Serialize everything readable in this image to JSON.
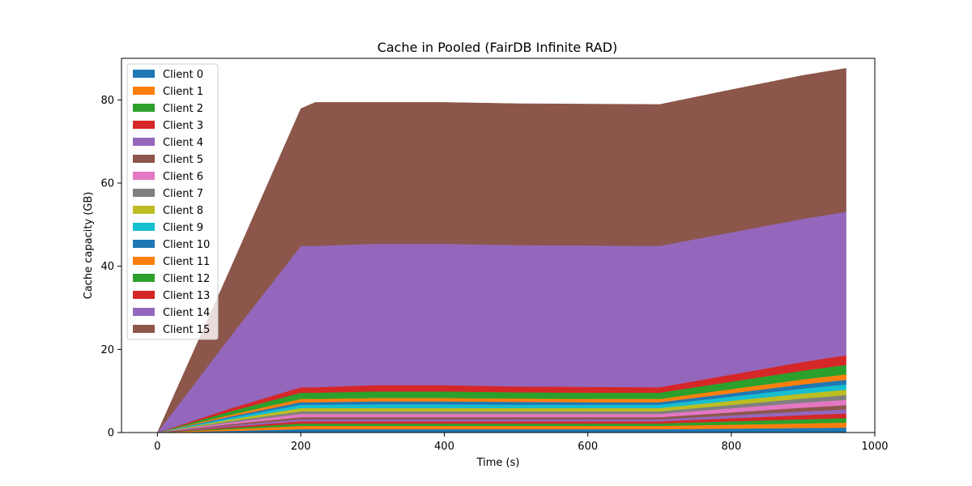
{
  "chart_data": {
    "type": "area",
    "stacked": true,
    "title": "Cache in  Pooled (FairDB Infinite RAD)",
    "xlabel": "Time (s)",
    "ylabel": "Cache capacity (GB)",
    "xlim": [
      -50,
      1000
    ],
    "ylim": [
      0,
      90
    ],
    "xticks": [
      0,
      200,
      400,
      600,
      800,
      1000
    ],
    "yticks": [
      0,
      20,
      40,
      60,
      80
    ],
    "grid": false,
    "legend_position": "upper-left",
    "x": [
      0,
      100,
      200,
      220,
      300,
      400,
      500,
      600,
      700,
      800,
      900,
      960
    ],
    "series": [
      {
        "name": "Client 0",
        "color": "#1f77b4",
        "values": [
          0,
          0.4,
          0.8,
          0.8,
          0.8,
          0.8,
          0.8,
          0.8,
          0.8,
          0.95,
          1.1,
          1.2
        ]
      },
      {
        "name": "Client 1",
        "color": "#ff7f0e",
        "values": [
          0,
          0.4,
          0.8,
          0.8,
          0.8,
          0.8,
          0.8,
          0.8,
          0.8,
          0.95,
          1.1,
          1.2
        ]
      },
      {
        "name": "Client 2",
        "color": "#2ca02c",
        "values": [
          0,
          0.3,
          0.6,
          0.6,
          0.6,
          0.6,
          0.6,
          0.6,
          0.6,
          0.8,
          1.0,
          1.1
        ]
      },
      {
        "name": "Client 3",
        "color": "#d62728",
        "values": [
          0,
          0.3,
          0.5,
          0.5,
          0.5,
          0.5,
          0.5,
          0.5,
          0.5,
          0.75,
          1.0,
          1.1
        ]
      },
      {
        "name": "Client 4",
        "color": "#9467bd",
        "values": [
          0,
          0.3,
          0.5,
          0.5,
          0.5,
          0.5,
          0.5,
          0.5,
          0.5,
          0.7,
          0.9,
          1.0
        ]
      },
      {
        "name": "Client 5",
        "color": "#8c564b",
        "values": [
          0,
          0.3,
          0.5,
          0.5,
          0.5,
          0.5,
          0.5,
          0.5,
          0.5,
          0.7,
          0.9,
          1.0
        ]
      },
      {
        "name": "Client 6",
        "color": "#e377c2",
        "values": [
          0,
          0.4,
          0.8,
          0.8,
          0.8,
          0.8,
          0.8,
          0.8,
          0.8,
          1.0,
          1.2,
          1.3
        ]
      },
      {
        "name": "Client 7",
        "color": "#7f7f7f",
        "values": [
          0,
          0.3,
          0.6,
          0.6,
          0.6,
          0.6,
          0.6,
          0.6,
          0.6,
          0.8,
          1.0,
          1.1
        ]
      },
      {
        "name": "Client 8",
        "color": "#bcbd22",
        "values": [
          0,
          0.4,
          0.8,
          0.8,
          0.8,
          0.8,
          0.8,
          0.8,
          0.8,
          1.0,
          1.2,
          1.3
        ]
      },
      {
        "name": "Client 9",
        "color": "#17becf",
        "values": [
          0,
          0.4,
          0.8,
          0.8,
          0.9,
          0.9,
          0.8,
          0.8,
          0.8,
          1.0,
          1.2,
          1.3
        ]
      },
      {
        "name": "Client 10",
        "color": "#1f77b4",
        "values": [
          0,
          0.3,
          0.6,
          0.6,
          0.7,
          0.7,
          0.7,
          0.6,
          0.6,
          0.8,
          1.0,
          1.1
        ]
      },
      {
        "name": "Client 11",
        "color": "#ff7f0e",
        "values": [
          0,
          0.4,
          0.8,
          0.8,
          0.8,
          0.8,
          0.8,
          0.8,
          0.8,
          1.0,
          1.2,
          1.3
        ]
      },
      {
        "name": "Client 12",
        "color": "#2ca02c",
        "values": [
          0,
          0.8,
          1.5,
          1.5,
          1.6,
          1.6,
          1.5,
          1.5,
          1.5,
          1.8,
          2.1,
          2.3
        ]
      },
      {
        "name": "Client 13",
        "color": "#d62728",
        "values": [
          0,
          0.7,
          1.3,
          1.3,
          1.5,
          1.5,
          1.4,
          1.4,
          1.3,
          1.7,
          2.1,
          2.3
        ]
      },
      {
        "name": "Client 14",
        "color": "#9467bd",
        "values": [
          0,
          17,
          34,
          34,
          34,
          34,
          34,
          34,
          34,
          34.2,
          34.4,
          34.5
        ]
      },
      {
        "name": "Client 15",
        "color": "#8c564b",
        "values": [
          0,
          16,
          33,
          34.5,
          34,
          34,
          34,
          34,
          34,
          34.3,
          34.5,
          34.5
        ]
      }
    ]
  }
}
